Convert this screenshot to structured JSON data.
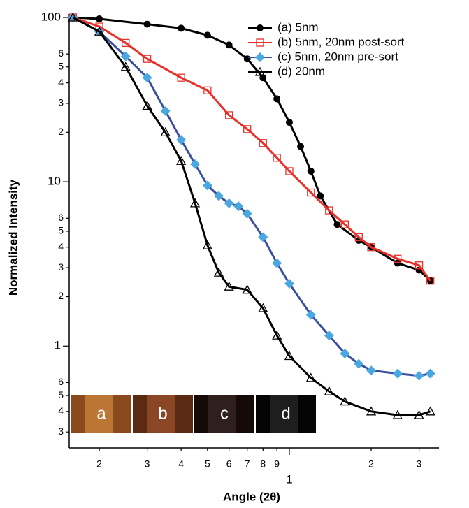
{
  "chart_data": {
    "type": "scatter",
    "xlabel": "Angle (2θ)",
    "ylabel": "Normalized Intensity",
    "log_x": true,
    "log_y": true,
    "legend": "upper right",
    "xlim": [
      0.155,
      3.55
    ],
    "ylim": [
      0.24,
      105
    ],
    "xticks": [
      {
        "value": 0.2,
        "label": "2"
      },
      {
        "value": 0.3,
        "label": "3"
      },
      {
        "value": 0.4,
        "label": "4"
      },
      {
        "value": 0.5,
        "label": "5"
      },
      {
        "value": 0.6,
        "label": "6"
      },
      {
        "value": 0.7,
        "label": "7"
      },
      {
        "value": 0.8,
        "label": "8"
      },
      {
        "value": 0.9,
        "label": "9"
      },
      1,
      {
        "value": 2,
        "label": "2"
      },
      {
        "value": 3,
        "label": "3"
      }
    ],
    "yticks": [
      {
        "value": 0.3,
        "label": "3"
      },
      {
        "value": 0.4,
        "label": "4"
      },
      {
        "value": 0.5,
        "label": "5"
      },
      {
        "value": 0.6,
        "label": "6"
      },
      1,
      {
        "value": 2,
        "label": "2"
      },
      {
        "value": 3,
        "label": "3"
      },
      {
        "value": 4,
        "label": "4"
      },
      {
        "value": 5,
        "label": "5"
      },
      {
        "value": 6,
        "label": "6"
      },
      10,
      {
        "value": 20,
        "label": "2"
      },
      {
        "value": 30,
        "label": "3"
      },
      {
        "value": 40,
        "label": "4"
      },
      {
        "value": 50,
        "label": "5"
      },
      {
        "value": 60,
        "label": "6"
      },
      100
    ],
    "inset_labels": [
      "a",
      "b",
      "c",
      "d"
    ],
    "series": [
      {
        "name": "(a) 5nm",
        "color": "#000000",
        "line_color": "#000000",
        "marker": "circle",
        "x": [
          0.16,
          0.2,
          0.3,
          0.4,
          0.5,
          0.6,
          0.7,
          0.8,
          0.9,
          1.0,
          1.1,
          1.2,
          1.3,
          1.5,
          1.8,
          2.0,
          2.5,
          3.0,
          3.3
        ],
        "values": [
          100,
          98,
          91,
          86,
          78,
          68,
          56,
          43,
          32,
          23,
          16.4,
          11.6,
          8.2,
          5.5,
          4.4,
          4,
          3.2,
          2.9,
          2.5
        ]
      },
      {
        "name": "(b) 5nm, 20nm post-sort",
        "color": "#e8302a",
        "line_color": "#e8302a",
        "marker": "square",
        "x": [
          0.16,
          0.2,
          0.25,
          0.3,
          0.4,
          0.5,
          0.6,
          0.7,
          0.8,
          0.9,
          1.0,
          1.2,
          1.4,
          1.6,
          1.8,
          2.0,
          2.5,
          3.0,
          3.3
        ],
        "values": [
          100,
          88,
          70,
          56,
          43,
          36,
          25.4,
          20.9,
          17.2,
          14,
          11.6,
          8.6,
          6.7,
          5.5,
          4.6,
          4,
          3.4,
          3.1,
          2.5
        ]
      },
      {
        "name": "(c) 5nm, 20nm pre-sort",
        "color": "#4aa8e0",
        "line_color": "#3a4fa0",
        "marker": "diamond",
        "x": [
          0.16,
          0.2,
          0.25,
          0.3,
          0.35,
          0.4,
          0.45,
          0.5,
          0.55,
          0.6,
          0.65,
          0.7,
          0.8,
          0.9,
          1.0,
          1.2,
          1.4,
          1.6,
          1.8,
          2.0,
          2.5,
          3.0,
          3.3
        ],
        "values": [
          100,
          82,
          58,
          43,
          27,
          18,
          12.8,
          9.5,
          8.2,
          7.4,
          7.1,
          6.4,
          4.6,
          3.2,
          2.4,
          1.55,
          1.16,
          0.9,
          0.78,
          0.71,
          0.68,
          0.66,
          0.68
        ]
      },
      {
        "name": "(d) 20nm",
        "color": "#000000",
        "line_color": "#000000",
        "marker": "triangle",
        "x": [
          0.16,
          0.2,
          0.25,
          0.3,
          0.35,
          0.4,
          0.45,
          0.5,
          0.55,
          0.6,
          0.7,
          0.8,
          0.9,
          1.0,
          1.2,
          1.4,
          1.6,
          2.0,
          2.5,
          3.0,
          3.3
        ],
        "values": [
          100,
          82,
          50,
          29,
          20,
          13.4,
          7.4,
          4.1,
          2.8,
          2.3,
          2.2,
          1.7,
          1.16,
          0.87,
          0.64,
          0.53,
          0.46,
          0.4,
          0.38,
          0.38,
          0.4
        ]
      }
    ]
  }
}
